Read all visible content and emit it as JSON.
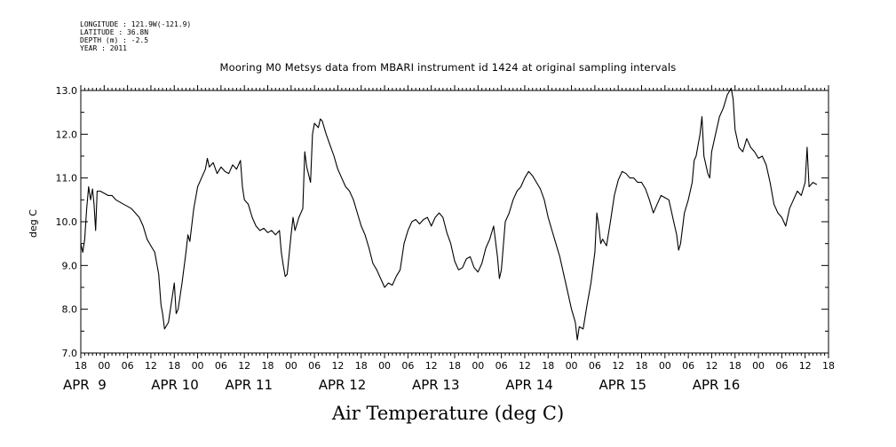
{
  "header": {
    "longitude": "LONGITUDE : 121.9W(-121.9)",
    "latitude": "LATITUDE : 36.8N",
    "depth": "DEPTH (m) : -2.5",
    "year": "YEAR : 2011"
  },
  "chart_data": {
    "type": "line",
    "title": "Mooring M0 Metsys data from MBARI instrument id 1424 at original sampling intervals",
    "xlabel": "Air Temperature (deg C)",
    "ylabel": "deg C",
    "xlim": [
      -6,
      186
    ],
    "ylim": [
      7.0,
      13.0
    ],
    "x_unit": "hours since 2011-04-09 00:00",
    "yticks": [
      "7.0",
      "8.0",
      "9.0",
      "10.0",
      "11.0",
      "12.0",
      "13.0"
    ],
    "hour_ticks": [
      "18",
      "00",
      "06",
      "12",
      "18",
      "00",
      "06",
      "12",
      "18",
      "00",
      "06",
      "12",
      "18",
      "00",
      "06",
      "12",
      "18",
      "00",
      "06",
      "12",
      "18",
      "00",
      "06",
      "12",
      "18",
      "00",
      "06",
      "12",
      "18",
      "00",
      "06",
      "12",
      "18"
    ],
    "day_labels": [
      "APR  9",
      "APR 10",
      "APR 11",
      "APR 12",
      "APR 13",
      "APR 14",
      "APR 15",
      "APR 16"
    ],
    "grid": false,
    "series": [
      {
        "color": "#000000",
        "points": [
          [
            -6,
            9.5
          ],
          [
            -5.5,
            9.3
          ],
          [
            -5,
            9.6
          ],
          [
            -4.5,
            10.3
          ],
          [
            -4,
            10.8
          ],
          [
            -3.5,
            10.5
          ],
          [
            -3,
            10.75
          ],
          [
            -2.6,
            10.4
          ],
          [
            -2.2,
            9.8
          ],
          [
            -1.8,
            10.7
          ],
          [
            -1,
            10.7
          ],
          [
            0,
            10.65
          ],
          [
            1,
            10.6
          ],
          [
            2,
            10.6
          ],
          [
            3,
            10.5
          ],
          [
            4,
            10.45
          ],
          [
            5,
            10.4
          ],
          [
            6,
            10.35
          ],
          [
            7,
            10.3
          ],
          [
            8,
            10.2
          ],
          [
            9,
            10.1
          ],
          [
            10,
            9.9
          ],
          [
            11,
            9.6
          ],
          [
            12,
            9.45
          ],
          [
            13,
            9.3
          ],
          [
            14,
            8.8
          ],
          [
            14.6,
            8.1
          ],
          [
            15,
            7.9
          ],
          [
            15.5,
            7.55
          ],
          [
            16.5,
            7.7
          ],
          [
            17.5,
            8.3
          ],
          [
            18,
            8.6
          ],
          [
            18.5,
            7.9
          ],
          [
            19,
            8.0
          ],
          [
            20,
            8.6
          ],
          [
            21,
            9.3
          ],
          [
            21.5,
            9.7
          ],
          [
            22,
            9.55
          ],
          [
            23,
            10.3
          ],
          [
            24,
            10.8
          ],
          [
            25,
            11.0
          ],
          [
            26,
            11.2
          ],
          [
            26.5,
            11.45
          ],
          [
            27,
            11.25
          ],
          [
            28,
            11.35
          ],
          [
            29,
            11.1
          ],
          [
            30,
            11.25
          ],
          [
            31,
            11.15
          ],
          [
            32,
            11.1
          ],
          [
            33,
            11.3
          ],
          [
            34,
            11.2
          ],
          [
            35,
            11.4
          ],
          [
            35.5,
            10.8
          ],
          [
            36,
            10.5
          ],
          [
            37,
            10.4
          ],
          [
            38,
            10.1
          ],
          [
            39,
            9.9
          ],
          [
            40,
            9.8
          ],
          [
            41,
            9.85
          ],
          [
            42,
            9.75
          ],
          [
            43,
            9.8
          ],
          [
            44,
            9.7
          ],
          [
            45,
            9.8
          ],
          [
            45.5,
            9.3
          ],
          [
            46,
            9.0
          ],
          [
            46.5,
            8.75
          ],
          [
            47,
            8.8
          ],
          [
            48,
            9.7
          ],
          [
            48.5,
            10.1
          ],
          [
            49,
            9.8
          ],
          [
            50,
            10.1
          ],
          [
            51,
            10.3
          ],
          [
            51.5,
            11.6
          ],
          [
            52,
            11.25
          ],
          [
            53,
            10.9
          ],
          [
            53.5,
            12.0
          ],
          [
            54,
            12.25
          ],
          [
            55,
            12.15
          ],
          [
            55.5,
            12.35
          ],
          [
            56,
            12.3
          ],
          [
            57,
            12.0
          ],
          [
            58,
            11.75
          ],
          [
            59,
            11.5
          ],
          [
            60,
            11.2
          ],
          [
            61,
            11.0
          ],
          [
            62,
            10.8
          ],
          [
            63,
            10.7
          ],
          [
            64,
            10.5
          ],
          [
            65,
            10.2
          ],
          [
            66,
            9.9
          ],
          [
            67,
            9.7
          ],
          [
            68,
            9.4
          ],
          [
            69,
            9.05
          ],
          [
            70,
            8.9
          ],
          [
            71,
            8.7
          ],
          [
            72,
            8.5
          ],
          [
            73,
            8.6
          ],
          [
            74,
            8.55
          ],
          [
            75,
            8.75
          ],
          [
            76,
            8.9
          ],
          [
            77,
            9.5
          ],
          [
            78,
            9.8
          ],
          [
            79,
            10.0
          ],
          [
            80,
            10.05
          ],
          [
            81,
            9.95
          ],
          [
            82,
            10.05
          ],
          [
            83,
            10.1
          ],
          [
            84,
            9.9
          ],
          [
            85,
            10.1
          ],
          [
            86,
            10.2
          ],
          [
            87,
            10.1
          ],
          [
            88,
            9.75
          ],
          [
            89,
            9.5
          ],
          [
            90,
            9.1
          ],
          [
            91,
            8.9
          ],
          [
            92,
            8.95
          ],
          [
            93,
            9.15
          ],
          [
            94,
            9.2
          ],
          [
            95,
            8.95
          ],
          [
            96,
            8.85
          ],
          [
            97,
            9.05
          ],
          [
            98,
            9.4
          ],
          [
            99,
            9.6
          ],
          [
            100,
            9.9
          ],
          [
            101,
            9.2
          ],
          [
            101.5,
            8.7
          ],
          [
            102,
            8.9
          ],
          [
            103,
            10.0
          ],
          [
            104,
            10.2
          ],
          [
            105,
            10.5
          ],
          [
            106,
            10.7
          ],
          [
            107,
            10.8
          ],
          [
            108,
            11.0
          ],
          [
            109,
            11.15
          ],
          [
            110,
            11.05
          ],
          [
            111,
            10.9
          ],
          [
            112,
            10.75
          ],
          [
            113,
            10.5
          ],
          [
            114,
            10.1
          ],
          [
            115,
            9.8
          ],
          [
            116,
            9.5
          ],
          [
            117,
            9.2
          ],
          [
            118,
            8.8
          ],
          [
            119,
            8.4
          ],
          [
            120,
            8.0
          ],
          [
            121,
            7.7
          ],
          [
            121.5,
            7.3
          ],
          [
            122,
            7.6
          ],
          [
            123,
            7.55
          ],
          [
            124,
            8.1
          ],
          [
            125,
            8.6
          ],
          [
            126,
            9.3
          ],
          [
            126.5,
            10.2
          ],
          [
            127,
            9.9
          ],
          [
            127.5,
            9.5
          ],
          [
            128,
            9.6
          ],
          [
            129,
            9.45
          ],
          [
            130,
            10.0
          ],
          [
            131,
            10.6
          ],
          [
            132,
            10.95
          ],
          [
            133,
            11.15
          ],
          [
            134,
            11.1
          ],
          [
            135,
            11.0
          ],
          [
            136,
            11.0
          ],
          [
            137,
            10.9
          ],
          [
            138,
            10.9
          ],
          [
            139,
            10.75
          ],
          [
            140,
            10.5
          ],
          [
            141,
            10.2
          ],
          [
            142,
            10.4
          ],
          [
            143,
            10.6
          ],
          [
            144,
            10.55
          ],
          [
            145,
            10.5
          ],
          [
            146,
            10.1
          ],
          [
            147,
            9.7
          ],
          [
            147.5,
            9.35
          ],
          [
            148,
            9.5
          ],
          [
            149,
            10.2
          ],
          [
            150,
            10.5
          ],
          [
            151,
            10.9
          ],
          [
            151.5,
            11.4
          ],
          [
            152,
            11.5
          ],
          [
            153,
            12.0
          ],
          [
            153.5,
            12.4
          ],
          [
            154,
            11.5
          ],
          [
            155,
            11.1
          ],
          [
            155.5,
            11.0
          ],
          [
            156,
            11.6
          ],
          [
            157,
            12.0
          ],
          [
            158,
            12.4
          ],
          [
            159,
            12.6
          ],
          [
            160,
            12.9
          ],
          [
            161,
            13.05
          ],
          [
            161.5,
            12.8
          ],
          [
            162,
            12.1
          ],
          [
            163,
            11.7
          ],
          [
            164,
            11.6
          ],
          [
            165,
            11.9
          ],
          [
            166,
            11.7
          ],
          [
            167,
            11.6
          ],
          [
            168,
            11.45
          ],
          [
            169,
            11.5
          ],
          [
            170,
            11.3
          ],
          [
            171,
            10.9
          ],
          [
            172,
            10.4
          ],
          [
            173,
            10.2
          ],
          [
            174,
            10.1
          ],
          [
            175,
            9.9
          ],
          [
            176,
            10.3
          ],
          [
            177,
            10.5
          ],
          [
            178,
            10.7
          ],
          [
            179,
            10.6
          ],
          [
            180,
            10.9
          ],
          [
            180.5,
            11.7
          ],
          [
            181,
            10.8
          ],
          [
            182,
            10.9
          ],
          [
            183,
            10.85
          ]
        ]
      }
    ]
  }
}
